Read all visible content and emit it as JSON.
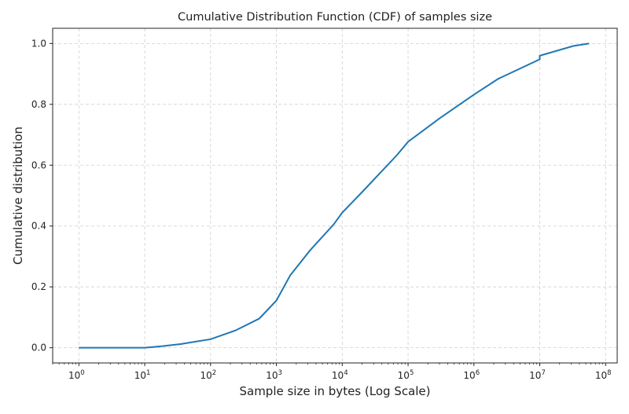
{
  "chart_data": {
    "type": "line",
    "title": "Cumulative Distribution Function (CDF) of samples size",
    "xlabel": "Sample size in bytes (Log Scale)",
    "ylabel": "Cumulative distribution",
    "x_scale": "log",
    "xlim": [
      0.4,
      150000000
    ],
    "ylim": [
      -0.05,
      1.05
    ],
    "x_ticks": [
      {
        "exp": 0,
        "label": "10",
        "sup": "0"
      },
      {
        "exp": 1,
        "label": "10",
        "sup": "1"
      },
      {
        "exp": 2,
        "label": "10",
        "sup": "2"
      },
      {
        "exp": 3,
        "label": "10",
        "sup": "3"
      },
      {
        "exp": 4,
        "label": "10",
        "sup": "4"
      },
      {
        "exp": 5,
        "label": "10",
        "sup": "5"
      },
      {
        "exp": 6,
        "label": "10",
        "sup": "6"
      },
      {
        "exp": 7,
        "label": "10",
        "sup": "7"
      },
      {
        "exp": 8,
        "label": "10",
        "sup": "8"
      }
    ],
    "y_ticks": [
      {
        "value": 0.0,
        "label": "0.0"
      },
      {
        "value": 0.2,
        "label": "0.2"
      },
      {
        "value": 0.4,
        "label": "0.4"
      },
      {
        "value": 0.6,
        "label": "0.6"
      },
      {
        "value": 0.8,
        "label": "0.8"
      },
      {
        "value": 1.0,
        "label": "1.0"
      }
    ],
    "grid": true,
    "line_color": "#1f77b4",
    "series": [
      {
        "x": [
          1,
          10,
          18,
          35,
          100,
          240,
          550,
          1000,
          1620,
          3240,
          7400,
          10000,
          19500,
          67600,
          100000,
          302000,
          1000000,
          2340000,
          10000000,
          10000001,
          32400000,
          56000000
        ],
        "y": [
          0,
          0,
          0.005,
          0.012,
          0.028,
          0.057,
          0.096,
          0.155,
          0.238,
          0.32,
          0.405,
          0.444,
          0.509,
          0.633,
          0.677,
          0.754,
          0.832,
          0.884,
          0.948,
          0.96,
          0.992,
          1.0
        ]
      }
    ]
  }
}
